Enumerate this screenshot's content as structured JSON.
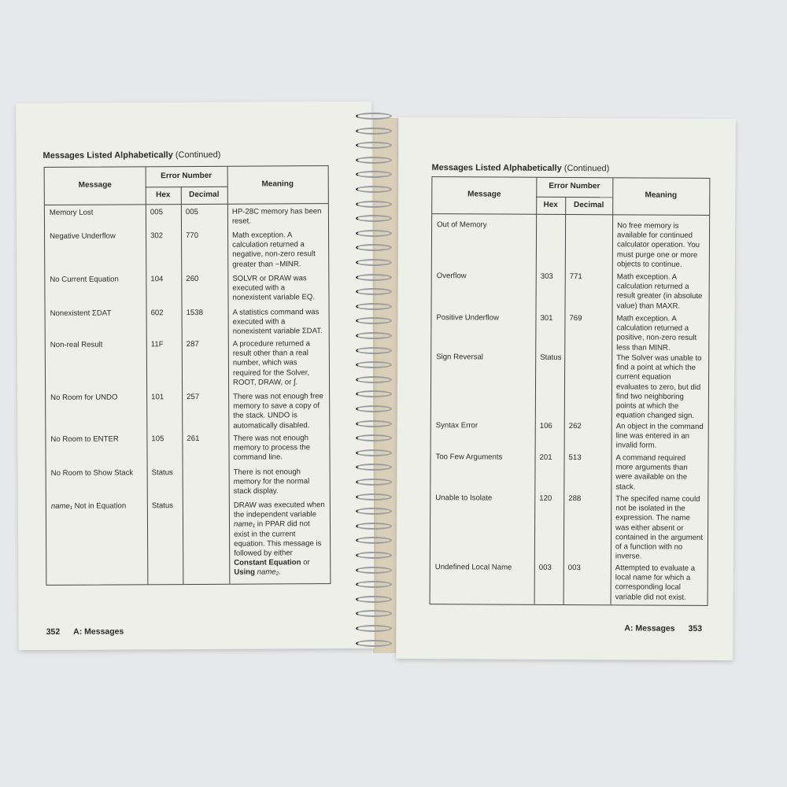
{
  "left_page": {
    "title": "Messages Listed Alphabetically",
    "title_suffix": "(Continued)",
    "headers": {
      "message": "Message",
      "error_number": "Error Number",
      "hex": "Hex",
      "decimal": "Decimal",
      "meaning": "Meaning"
    },
    "rows": [
      {
        "message": "Memory Lost",
        "hex": "005",
        "decimal": "005",
        "meaning": "HP-28C memory has been reset."
      },
      {
        "message": "Negative Underflow",
        "hex": "302",
        "decimal": "770",
        "meaning": "Math exception. A calculation returned a negative, non-zero result greater than −MINR."
      },
      {
        "message": "No Current Equation",
        "hex": "104",
        "decimal": "260",
        "meaning": "SOLVR or DRAW was executed with a nonexistent variable EQ."
      },
      {
        "message": "Nonexistent ΣDAT",
        "hex": "602",
        "decimal": "1538",
        "meaning": "A statistics command was executed with a nonexistent variable ΣDAT."
      },
      {
        "message": "Non-real Result",
        "hex": "11F",
        "decimal": "287",
        "meaning": "A procedure returned a result other than a real number, which was required for the Solver, ROOT, DRAW, or ∫."
      },
      {
        "message": "No Room for UNDO",
        "hex": "101",
        "decimal": "257",
        "meaning": "There was not enough free memory to save a copy of the stack. UNDO is automatically disabled."
      },
      {
        "message": "No Room to ENTER",
        "hex": "105",
        "decimal": "261",
        "meaning": "There was not enough memory to process the command line."
      },
      {
        "message": "No Room to Show Stack",
        "hex": "Status",
        "decimal": "",
        "meaning": "There is not enough memory for the normal stack display."
      }
    ],
    "last_row": {
      "message_italic": "name₁",
      "message_rest": " Not in Equation",
      "hex": "Status",
      "meaning_1": "DRAW was executed when the independent variable ",
      "meaning_italic_1": "name₁",
      "meaning_2": " in PPAR did not exist in the current equation. This message is followed by either ",
      "meaning_bold_1": "Constant Equation",
      "meaning_3": " or ",
      "meaning_bold_2": "Using",
      "meaning_italic_2": " name₂",
      "meaning_4": "."
    },
    "footer": {
      "page_number": "352",
      "section": "A: Messages"
    }
  },
  "right_page": {
    "title": "Messages Listed Alphabetically",
    "title_suffix": "(Continued)",
    "headers": {
      "message": "Message",
      "error_number": "Error Number",
      "hex": "Hex",
      "decimal": "Decimal",
      "meaning": "Meaning"
    },
    "rows": [
      {
        "message": "Out of Memory",
        "hex": "",
        "decimal": "",
        "meaning": "No free memory is available for continued calculator operation. You must purge one or more objects to continue."
      },
      {
        "message": "Overflow",
        "hex": "303",
        "decimal": "771",
        "meaning": "Math exception. A calculation returned a result greater (in absolute value) than MAXR."
      },
      {
        "message": "Positive Underflow",
        "hex": "301",
        "decimal": "769",
        "meaning": "Math exception. A calculation returned a positive, non-zero result less than MINR."
      },
      {
        "message": "Sign Reversal",
        "hex": "Status",
        "decimal": "",
        "meaning": "The Solver was unable to find a point at which the current equation evaluates to zero, but did find two neighboring points at which the equation changed sign."
      },
      {
        "message": "Syntax Error",
        "hex": "106",
        "decimal": "262",
        "meaning": "An object in the command line was entered in an invalid form."
      },
      {
        "message": "Too Few Arguments",
        "hex": "201",
        "decimal": "513",
        "meaning": "A command required more arguments than were available on the stack."
      },
      {
        "message": "Unable to Isolate",
        "hex": "120",
        "decimal": "288",
        "meaning": "The specifed name could not be isolated in the expression. The name was either absent or contained in the argument of a function with no inverse."
      },
      {
        "message": "Undefined Local Name",
        "hex": "003",
        "decimal": "003",
        "meaning": "Attempted to evaluate a local name for which a corresponding local variable did not exist."
      }
    ],
    "footer": {
      "section": "A: Messages",
      "page_number": "353"
    }
  }
}
